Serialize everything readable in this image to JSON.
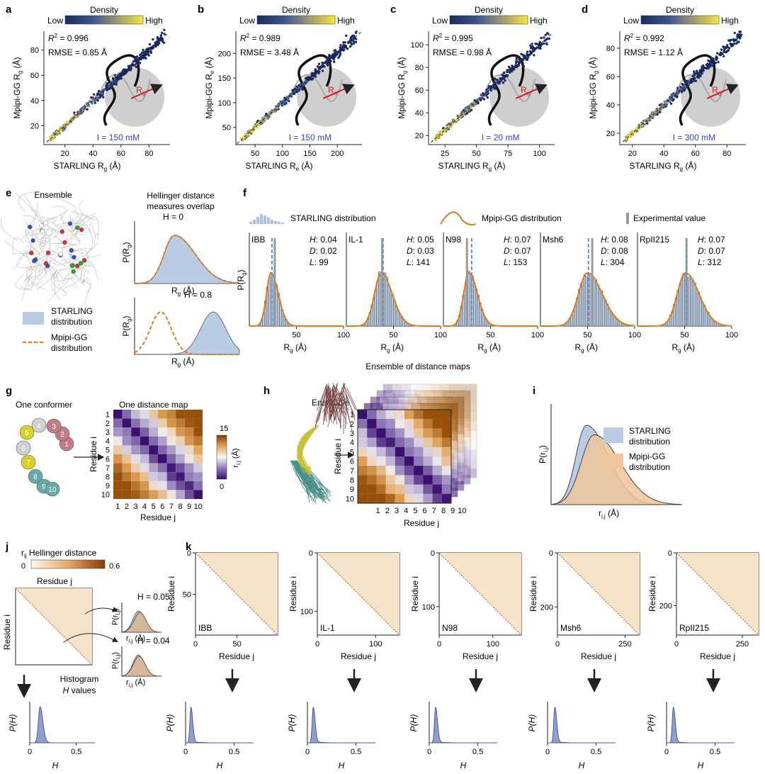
{
  "density": {
    "title": "Density",
    "low": "Low",
    "high": "High",
    "colors": [
      "#1b2a5e",
      "#2f4a8a",
      "#6d7a8f",
      "#b7a95a",
      "#f2e33a"
    ]
  },
  "row1": [
    {
      "label": "a",
      "r2": "0.996",
      "rmse": "RMSE = 0.85 Å",
      "ionic": "I = 150 mM",
      "xlabel": "STARLING R",
      "xsub": "g",
      "xunit": " (Å)",
      "ylabel": "Mpipi-GG R",
      "ysub": "g",
      "yunit": " (Å)",
      "xlim": [
        5,
        95
      ],
      "ylim": [
        5,
        95
      ],
      "xticks": [
        "20",
        "40",
        "60",
        "80"
      ],
      "xtickv": [
        20,
        40,
        60,
        80
      ],
      "yticks": [
        "20",
        "40",
        "60",
        "80"
      ],
      "ytickv": [
        20,
        40,
        60,
        80
      ]
    },
    {
      "label": "b",
      "r2": "0.989",
      "rmse": "RMSE = 3.48 Å",
      "ionic": "I = 150 mM",
      "xlabel": "STARLING R",
      "xsub": "e",
      "xunit": " (Å)",
      "ylabel": "Mpipi-GG R",
      "ysub": "e",
      "yunit": " (Å)",
      "xlim": [
        15,
        245
      ],
      "ylim": [
        15,
        245
      ],
      "xticks": [
        "50",
        "100",
        "150",
        "200"
      ],
      "xtickv": [
        50,
        100,
        150,
        200
      ],
      "yticks": [
        "50",
        "100",
        "150",
        "200"
      ],
      "ytickv": [
        50,
        100,
        150,
        200
      ]
    },
    {
      "label": "c",
      "r2": "0.995",
      "rmse": "RMSE = 0.98 Å",
      "ionic": "I = 20 mM",
      "xlabel": "STARLING R",
      "xsub": "g",
      "xunit": " (Å)",
      "ylabel": "Mpipi-GG R",
      "ysub": "g",
      "yunit": " (Å)",
      "xlim": [
        12,
        112
      ],
      "ylim": [
        12,
        112
      ],
      "xticks": [
        "25",
        "50",
        "75",
        "100"
      ],
      "xtickv": [
        25,
        50,
        75,
        100
      ],
      "yticks": [
        "20",
        "40",
        "60",
        "80",
        "100"
      ],
      "ytickv": [
        20,
        40,
        60,
        80,
        100
      ]
    },
    {
      "label": "d",
      "r2": "0.992",
      "rmse": "RMSE = 1.12 Å",
      "ionic": "I = 300 mM",
      "xlabel": "STARLING R",
      "xsub": "g",
      "xunit": " (Å)",
      "ylabel": "Mpipi-GG R",
      "ysub": "g",
      "yunit": " (Å)",
      "xlim": [
        12,
        92
      ],
      "ylim": [
        12,
        92
      ],
      "xticks": [
        "20",
        "40",
        "60",
        "80"
      ],
      "xtickv": [
        20,
        40,
        60,
        80
      ],
      "yticks": [
        "20",
        "40",
        "60",
        "80"
      ],
      "ytickv": [
        20,
        40,
        60,
        80
      ]
    }
  ],
  "panel_e": {
    "label": "e",
    "ensemble": "Ensemble",
    "hellinger_title_1": "Hellinger distance",
    "hellinger_title_2": "measures overlap",
    "h0": "H = 0",
    "h08": "H = 0.8",
    "ylabel": "P(R",
    "ysub": "g",
    "xlabel": "R",
    "xsub": "g",
    "xunit": " (Å)",
    "legend_starling_1": "STARLING",
    "legend_starling_2": "distribution",
    "legend_mpipi_1": "Mpipi-GG",
    "legend_mpipi_2": "distribution"
  },
  "panel_f": {
    "label": "f",
    "legend_starling": "STARLING distribution",
    "legend_mpipi": "Mpipi-GG distribution",
    "legend_exp": "Experimental value",
    "ylabel": "P(R",
    "ysub": "g",
    "xlabel": "R",
    "xsub": "g",
    "xunit": " (Å)",
    "xticks": [
      "50",
      "100"
    ],
    "xtickv": [
      50,
      100
    ],
    "xlim": [
      0,
      100
    ],
    "proteins": [
      {
        "name": "IBB",
        "H": "0.04",
        "D": "0.02",
        "L": "99",
        "mean": 23,
        "sd": 6,
        "exp": 27,
        "mline": 24
      },
      {
        "name": "IL-1",
        "H": "0.05",
        "D": "0.03",
        "L": "141",
        "mean": 37,
        "sd": 9,
        "exp": 38,
        "mline": 39
      },
      {
        "name": "N98",
        "H": "0.07",
        "D": "0.07",
        "L": "153",
        "mean": 27,
        "sd": 7,
        "exp": 25,
        "mline": 30
      },
      {
        "name": "Msh6",
        "H": "0.08",
        "D": "0.08",
        "L": "304",
        "mean": 50,
        "sd": 12,
        "exp": 55,
        "mline": 51
      },
      {
        "name": "RpII215",
        "H": "0.07",
        "D": "0.07",
        "L": "312",
        "mean": 51,
        "sd": 11,
        "exp": 52,
        "mline": 52
      }
    ]
  },
  "panel_g": {
    "label": "g",
    "one_conformer": "One conformer",
    "one_map": "One distance map",
    "xlabel": "Residue j",
    "ylabel": "Residue i",
    "ticks": [
      "1",
      "2",
      "3",
      "4",
      "5",
      "6",
      "7",
      "8",
      "9",
      "10"
    ],
    "cbar_max": "15",
    "cbar_min": "0",
    "cbar_label": "r",
    "beads": [
      "1",
      "2",
      "3",
      "4",
      "5",
      "6",
      "7",
      "8",
      "9",
      "10"
    ]
  },
  "panel_h": {
    "label": "h",
    "ensemble": "Ensemble",
    "maps_title": "Ensemble of distance maps",
    "xlabel": "Residue j",
    "ylabel": "Residue i",
    "ticks": [
      "1",
      "2",
      "3",
      "4",
      "5",
      "6",
      "7",
      "8",
      "9",
      "10"
    ]
  },
  "panel_i": {
    "label": "i",
    "starling_1": "STARLING",
    "starling_2": "distribution",
    "mpipi_1": "Mpipi-GG",
    "mpipi_2": "distribution",
    "ylabel": "P(r",
    "ysub": "i,j",
    "xlabel": "r",
    "xsub": "i,j",
    "xunit": " (Å)"
  },
  "panel_j": {
    "label": "j",
    "cbar_title": "Hellinger distance",
    "cbar_r": "r",
    "cbar_rsub": "ij",
    "cbar_min": "0",
    "cbar_max": "0.6",
    "residue_j": "Residue j",
    "residue_i": "Residue i",
    "h1": "H = 0.05",
    "h2": "H = 0.04",
    "hist_1": "Histogram",
    "hist_2": "H values",
    "pr": "P(r",
    "prsub": "i,j",
    "rx": "r",
    "rxsub": "i,j",
    "rxunit": " (Å)",
    "ph_label": "P(H)",
    "h_label": "H",
    "ph_ticks": [
      "0",
      "0.5"
    ],
    "ph_tickv": [
      0,
      0.5
    ],
    "ph_mean": 0.11,
    "ph_sd": 0.025
  },
  "panel_k": {
    "label": "k",
    "xlabel": "Residue j",
    "ylabel": "Residue i",
    "ph_label": "P(H)",
    "h_label": "H",
    "maps": [
      {
        "name": "IBB",
        "n": 99,
        "xticks": [
          "0",
          "50"
        ],
        "xtickv": [
          0,
          50
        ],
        "yticks": [
          "0",
          "50"
        ],
        "ytickv": [
          0,
          50
        ]
      },
      {
        "name": "IL-1",
        "n": 141,
        "xticks": [
          "0",
          "100"
        ],
        "xtickv": [
          0,
          100
        ],
        "yticks": [
          "0",
          "100"
        ],
        "ytickv": [
          0,
          100
        ]
      },
      {
        "name": "N98",
        "n": 153,
        "xticks": [
          "0",
          "100"
        ],
        "xtickv": [
          0,
          100
        ],
        "yticks": [
          "0",
          "100"
        ],
        "ytickv": [
          0,
          100
        ]
      },
      {
        "name": "Msh6",
        "n": 304,
        "xticks": [
          "0",
          "250"
        ],
        "xtickv": [
          0,
          250
        ],
        "yticks": [
          "0",
          "200"
        ],
        "ytickv": [
          0,
          200
        ]
      },
      {
        "name": "RpII215",
        "n": 312,
        "xticks": [
          "0",
          "250"
        ],
        "xtickv": [
          0,
          250
        ],
        "yticks": [
          "0",
          "200"
        ],
        "ytickv": [
          0,
          200
        ]
      }
    ],
    "hists": [
      {
        "ticks": [
          "0",
          "0.5"
        ],
        "tickv": [
          0,
          0.5
        ],
        "mean": 0.055,
        "sd": 0.015
      },
      {
        "ticks": [
          "0",
          "0.5"
        ],
        "tickv": [
          0,
          0.5
        ],
        "mean": 0.06,
        "sd": 0.016
      },
      {
        "ticks": [
          "0",
          "0.5"
        ],
        "tickv": [
          0,
          0.5
        ],
        "mean": 0.065,
        "sd": 0.016
      },
      {
        "ticks": [
          "0",
          "0.5"
        ],
        "tickv": [
          0,
          0.5
        ],
        "mean": 0.075,
        "sd": 0.016
      },
      {
        "ticks": [
          "0",
          "0.5"
        ],
        "tickv": [
          0,
          0.5
        ],
        "mean": 0.07,
        "sd": 0.016
      }
    ]
  },
  "chart_data": [
    {
      "type": "scatter",
      "panel": "a",
      "title": "",
      "xlabel": "STARLING Rg (Å)",
      "ylabel": "Mpipi-GG Rg (Å)",
      "xlim": [
        5,
        95
      ],
      "ylim": [
        5,
        95
      ],
      "annotation": [
        "R2 = 0.996",
        "RMSE = 0.85 Å",
        "I = 150 mM"
      ]
    },
    {
      "type": "scatter",
      "panel": "b",
      "title": "",
      "xlabel": "STARLING Re (Å)",
      "ylabel": "Mpipi-GG Re (Å)",
      "xlim": [
        15,
        245
      ],
      "ylim": [
        15,
        245
      ],
      "annotation": [
        "R2 = 0.989",
        "RMSE = 3.48 Å",
        "I = 150 mM"
      ]
    },
    {
      "type": "scatter",
      "panel": "c",
      "title": "",
      "xlabel": "STARLING Rg (Å)",
      "ylabel": "Mpipi-GG Rg (Å)",
      "xlim": [
        12,
        112
      ],
      "ylim": [
        12,
        112
      ],
      "annotation": [
        "R2 = 0.995",
        "RMSE = 0.98 Å",
        "I = 20 mM"
      ]
    },
    {
      "type": "scatter",
      "panel": "d",
      "title": "",
      "xlabel": "STARLING Rg (Å)",
      "ylabel": "Mpipi-GG Rg (Å)",
      "xlim": [
        12,
        92
      ],
      "ylim": [
        12,
        92
      ],
      "annotation": [
        "R2 = 0.992",
        "RMSE = 1.12 Å",
        "I = 300 mM"
      ]
    },
    {
      "type": "bar",
      "panel": "f",
      "xlabel": "Rg (Å)",
      "ylabel": "P(Rg)",
      "series": [
        {
          "name": "IBB",
          "H": 0.04,
          "D": 0.02,
          "L": 99
        },
        {
          "name": "IL-1",
          "H": 0.05,
          "D": 0.03,
          "L": 141
        },
        {
          "name": "N98",
          "H": 0.07,
          "D": 0.07,
          "L": 153
        },
        {
          "name": "Msh6",
          "H": 0.08,
          "D": 0.08,
          "L": 304
        },
        {
          "name": "RpII215",
          "H": 0.07,
          "D": 0.07,
          "L": 312
        }
      ]
    },
    {
      "type": "heatmap",
      "panel": "g",
      "xlabel": "Residue j",
      "ylabel": "Residue i",
      "x": [
        1,
        2,
        3,
        4,
        5,
        6,
        7,
        8,
        9,
        10
      ],
      "y": [
        1,
        2,
        3,
        4,
        5,
        6,
        7,
        8,
        9,
        10
      ],
      "colorbar": [
        0,
        15
      ]
    },
    {
      "type": "area",
      "panel": "i",
      "xlabel": "ri,j (Å)",
      "ylabel": "P(ri,j)",
      "series": [
        {
          "name": "STARLING distribution"
        },
        {
          "name": "Mpipi-GG distribution"
        }
      ]
    },
    {
      "type": "heatmap",
      "panel": "k",
      "xlabel": "Residue j",
      "ylabel": "Residue i",
      "colorbar": [
        0,
        0.6
      ],
      "series": [
        {
          "name": "IBB"
        },
        {
          "name": "IL-1"
        },
        {
          "name": "N98"
        },
        {
          "name": "Msh6"
        },
        {
          "name": "RpII215"
        }
      ]
    }
  ]
}
